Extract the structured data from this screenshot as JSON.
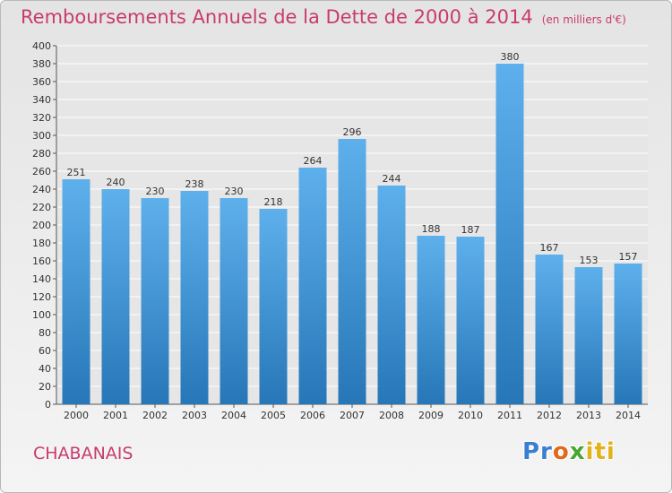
{
  "header": {
    "title": "Remboursements Annuels de la Dette de 2000 à 2014",
    "unit": "(en milliers d'€)"
  },
  "commune": "CHABANAIS",
  "logo": {
    "text": "Proxiti",
    "part1": "Pr",
    "part2": "o",
    "part3": "x",
    "part4": "iti"
  },
  "colors": {
    "title": "#c83b6e",
    "bar_light": "#5eb0ec",
    "bar_dark": "#2777b8",
    "grid": "#ffffff"
  },
  "chart_data": {
    "type": "bar",
    "categories": [
      "2000",
      "2001",
      "2002",
      "2003",
      "2004",
      "2005",
      "2006",
      "2007",
      "2008",
      "2009",
      "2010",
      "2011",
      "2012",
      "2013",
      "2014"
    ],
    "values": [
      251,
      240,
      230,
      238,
      230,
      218,
      264,
      296,
      244,
      188,
      187,
      380,
      167,
      153,
      157
    ],
    "ylim": [
      0,
      400
    ],
    "yticks": [
      0,
      20,
      40,
      60,
      80,
      100,
      120,
      140,
      160,
      180,
      200,
      220,
      240,
      260,
      280,
      300,
      320,
      340,
      360,
      380,
      400
    ],
    "grid": true,
    "data_labels": true
  }
}
